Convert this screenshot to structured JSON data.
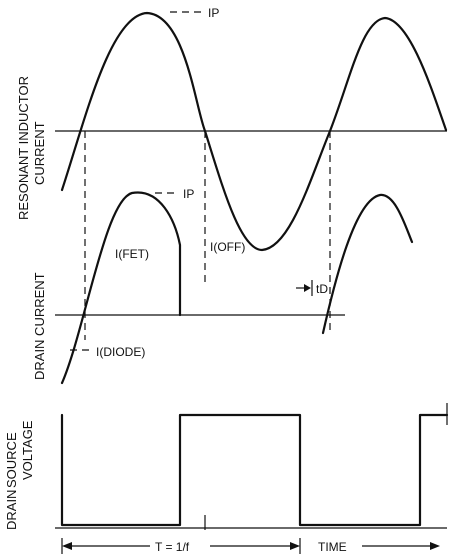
{
  "resonant": {
    "ylabel_line1": "RESONANT INDUCTOR",
    "ylabel_line2": "CURRENT",
    "peak_label": "IP"
  },
  "drain_current": {
    "ylabel": "DRAIN CURRENT",
    "peak_label": "IP",
    "fet_label": "I(FET)",
    "off_label": "I(OFF)",
    "diode_label": "I(DIODE)",
    "td_label": "tD"
  },
  "voltage": {
    "ylabel_line1": "SOURCE",
    "ylabel_line2": "VOLTAGE",
    "ylabel_drain": "DRAIN"
  },
  "time_axis": {
    "period_label": "T = 1/f",
    "time_label": "TIME"
  }
}
